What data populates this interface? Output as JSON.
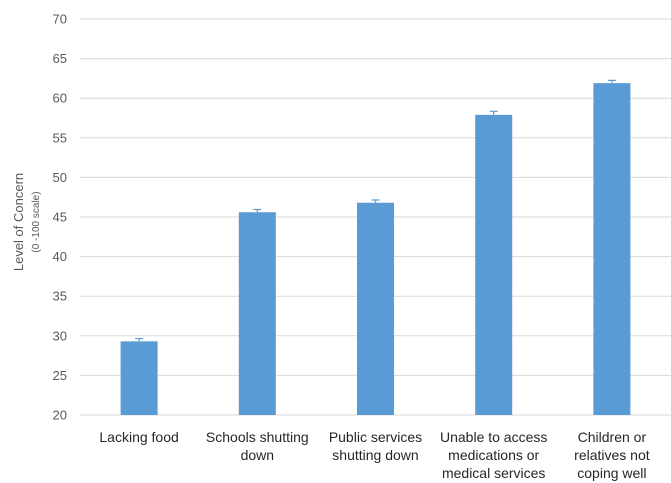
{
  "chart_data": {
    "type": "bar",
    "categories": [
      [
        "Lacking food"
      ],
      [
        "Schools shutting",
        "down"
      ],
      [
        "Public services",
        "shutting down"
      ],
      [
        "Unable to access",
        "medications or",
        "medical services"
      ],
      [
        "Children or",
        "relatives not",
        "coping well"
      ]
    ],
    "values": [
      29.3,
      45.6,
      46.8,
      57.9,
      61.9
    ],
    "error": [
      0.35,
      0.35,
      0.35,
      0.45,
      0.35
    ],
    "ylabel": "Level of Concern",
    "ylabel_sub": "(0 -100 scale)",
    "ylim": [
      20,
      70
    ],
    "yticks": [
      20,
      25,
      30,
      35,
      40,
      45,
      50,
      55,
      60,
      65,
      70
    ],
    "grid": true,
    "bar_color": "#5B9BD5",
    "grid_color": "#D9D9D9"
  }
}
